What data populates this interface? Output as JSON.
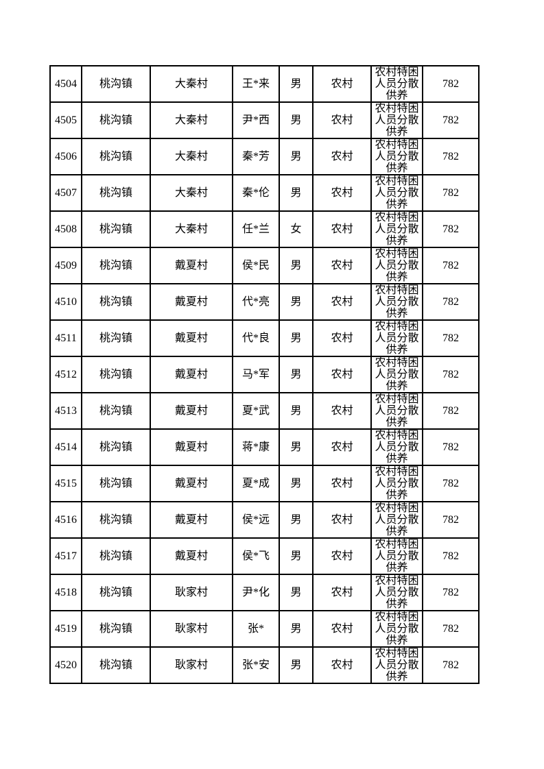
{
  "page": {
    "background": "#ffffff",
    "border_color": "#000000",
    "text_color": "#000000"
  },
  "table": {
    "rows": [
      {
        "id": "4504",
        "town": "桃沟镇",
        "village": "大秦村",
        "name": "王*来",
        "gender": "男",
        "region": "农村",
        "category": "农村特困人员分散供养",
        "amount": "782"
      },
      {
        "id": "4505",
        "town": "桃沟镇",
        "village": "大秦村",
        "name": "尹*西",
        "gender": "男",
        "region": "农村",
        "category": "农村特困人员分散供养",
        "amount": "782"
      },
      {
        "id": "4506",
        "town": "桃沟镇",
        "village": "大秦村",
        "name": "秦*芳",
        "gender": "男",
        "region": "农村",
        "category": "农村特困人员分散供养",
        "amount": "782"
      },
      {
        "id": "4507",
        "town": "桃沟镇",
        "village": "大秦村",
        "name": "秦*伦",
        "gender": "男",
        "region": "农村",
        "category": "农村特困人员分散供养",
        "amount": "782"
      },
      {
        "id": "4508",
        "town": "桃沟镇",
        "village": "大秦村",
        "name": "任*兰",
        "gender": "女",
        "region": "农村",
        "category": "农村特困人员分散供养",
        "amount": "782"
      },
      {
        "id": "4509",
        "town": "桃沟镇",
        "village": "戴夏村",
        "name": "侯*民",
        "gender": "男",
        "region": "农村",
        "category": "农村特困人员分散供养",
        "amount": "782"
      },
      {
        "id": "4510",
        "town": "桃沟镇",
        "village": "戴夏村",
        "name": "代*亮",
        "gender": "男",
        "region": "农村",
        "category": "农村特困人员分散供养",
        "amount": "782"
      },
      {
        "id": "4511",
        "town": "桃沟镇",
        "village": "戴夏村",
        "name": "代*良",
        "gender": "男",
        "region": "农村",
        "category": "农村特困人员分散供养",
        "amount": "782"
      },
      {
        "id": "4512",
        "town": "桃沟镇",
        "village": "戴夏村",
        "name": "马*军",
        "gender": "男",
        "region": "农村",
        "category": "农村特困人员分散供养",
        "amount": "782"
      },
      {
        "id": "4513",
        "town": "桃沟镇",
        "village": "戴夏村",
        "name": "夏*武",
        "gender": "男",
        "region": "农村",
        "category": "农村特困人员分散供养",
        "amount": "782"
      },
      {
        "id": "4514",
        "town": "桃沟镇",
        "village": "戴夏村",
        "name": "蒋*康",
        "gender": "男",
        "region": "农村",
        "category": "农村特困人员分散供养",
        "amount": "782"
      },
      {
        "id": "4515",
        "town": "桃沟镇",
        "village": "戴夏村",
        "name": "夏*成",
        "gender": "男",
        "region": "农村",
        "category": "农村特困人员分散供养",
        "amount": "782"
      },
      {
        "id": "4516",
        "town": "桃沟镇",
        "village": "戴夏村",
        "name": "侯*远",
        "gender": "男",
        "region": "农村",
        "category": "农村特困人员分散供养",
        "amount": "782"
      },
      {
        "id": "4517",
        "town": "桃沟镇",
        "village": "戴夏村",
        "name": "侯*飞",
        "gender": "男",
        "region": "农村",
        "category": "农村特困人员分散供养",
        "amount": "782"
      },
      {
        "id": "4518",
        "town": "桃沟镇",
        "village": "耿家村",
        "name": "尹*化",
        "gender": "男",
        "region": "农村",
        "category": "农村特困人员分散供养",
        "amount": "782"
      },
      {
        "id": "4519",
        "town": "桃沟镇",
        "village": "耿家村",
        "name": "张*",
        "gender": "男",
        "region": "农村",
        "category": "农村特困人员分散供养",
        "amount": "782"
      },
      {
        "id": "4520",
        "town": "桃沟镇",
        "village": "耿家村",
        "name": "张*安",
        "gender": "男",
        "region": "农村",
        "category": "农村特困人员分散供养",
        "amount": "782"
      }
    ]
  }
}
